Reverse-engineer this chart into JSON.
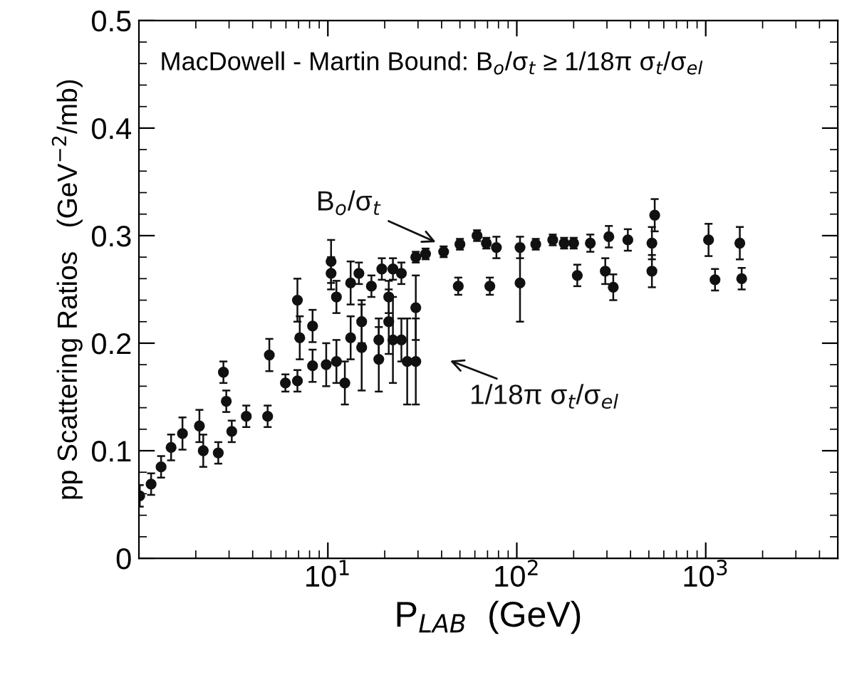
{
  "chart_data": {
    "type": "scatter",
    "title": "MacDowell - Martin Bound: B$_{o}$/σ$_{t}$ ≥ 1/18π σ$_{t}$/σ$_{el}$",
    "xlabel": "P$_{LAB}$  (GeV)",
    "ylabel": "pp Scattering Ratios   (GeV$^{−2}$/mb)",
    "log": "x",
    "xlim": [
      1,
      5000
    ],
    "xticks": [
      {
        "value": 10,
        "label": "10$^{1}$"
      },
      {
        "value": 100,
        "label": "10$^{2}$"
      },
      {
        "value": 1000,
        "label": "10$^{3}$"
      }
    ],
    "ylim": [
      0,
      0.5
    ],
    "yticks": [
      0,
      0.1,
      0.2,
      0.3,
      0.4,
      0.5
    ],
    "grid": false,
    "marker": "circle",
    "series": [
      {
        "name": "B$_{o}$/σ$_{t}$",
        "color": "#111111",
        "x": [
          1.01,
          1.31,
          1.7,
          2.19,
          2.8,
          3.1,
          4.9,
          6.9,
          8.3,
          10.4,
          10.4,
          11.1,
          13.2,
          14.6,
          17,
          19.3,
          21,
          22.1,
          24.5,
          29.2,
          32.9,
          41,
          50,
          61.6,
          69,
          78,
          104,
          126,
          155,
          178,
          200,
          245,
          307,
          387,
          519,
          537,
          1035,
          1515
        ],
        "values": [
          0.058,
          0.085,
          0.116,
          0.1,
          0.173,
          0.118,
          0.189,
          0.24,
          0.216,
          0.265,
          0.276,
          0.243,
          0.256,
          0.265,
          0.253,
          0.269,
          0.243,
          0.269,
          0.265,
          0.28,
          0.283,
          0.285,
          0.292,
          0.3,
          0.293,
          0.289,
          0.289,
          0.292,
          0.296,
          0.293,
          0.293,
          0.293,
          0.299,
          0.296,
          0.293,
          0.319,
          0.296,
          0.293
        ],
        "errors": [
          0.01,
          0.01,
          0.015,
          0.015,
          0.01,
          0.01,
          0.015,
          0.02,
          0.015,
          0.015,
          0.02,
          0.015,
          0.02,
          0.01,
          0.01,
          0.01,
          0.015,
          0.01,
          0.01,
          0.005,
          0.005,
          0.005,
          0.005,
          0.005,
          0.005,
          0.01,
          0.01,
          0.005,
          0.005,
          0.005,
          0.005,
          0.008,
          0.01,
          0.01,
          0.015,
          0.015,
          0.015,
          0.015
        ]
      },
      {
        "name": "1/18π σ$_{t}$/σ$_{el}$",
        "color": "#111111",
        "x": [
          1.16,
          1.48,
          2.09,
          2.63,
          2.9,
          3.7,
          4.8,
          5.96,
          6.9,
          7.1,
          8.3,
          9.8,
          11.1,
          12.3,
          13.2,
          15.1,
          15.1,
          18.6,
          18.6,
          21,
          22.1,
          24.5,
          26.3,
          29.2,
          29.2,
          49,
          72,
          104,
          209,
          294,
          324,
          519,
          1120,
          1550
        ],
        "values": [
          0.069,
          0.103,
          0.123,
          0.098,
          0.146,
          0.132,
          0.132,
          0.163,
          0.165,
          0.205,
          0.179,
          0.18,
          0.183,
          0.163,
          0.205,
          0.22,
          0.196,
          0.203,
          0.185,
          0.22,
          0.203,
          0.203,
          0.183,
          0.233,
          0.183,
          0.253,
          0.253,
          0.256,
          0.263,
          0.267,
          0.252,
          0.267,
          0.259,
          0.26
        ],
        "errors": [
          0.01,
          0.012,
          0.015,
          0.01,
          0.01,
          0.01,
          0.01,
          0.008,
          0.01,
          0.02,
          0.015,
          0.02,
          0.02,
          0.02,
          0.02,
          0.02,
          0.04,
          0.02,
          0.03,
          0.03,
          0.04,
          0.02,
          0.04,
          0.03,
          0.04,
          0.008,
          0.008,
          0.036,
          0.01,
          0.012,
          0.012,
          0.015,
          0.01,
          0.01
        ]
      }
    ]
  }
}
